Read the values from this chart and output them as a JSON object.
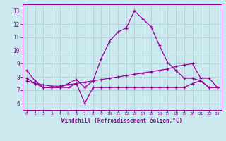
{
  "xlabel": "Windchill (Refroidissement éolien,°C)",
  "background_color": "#cce9f0",
  "line_color": "#990099",
  "grid_color": "#aaccd4",
  "xlim": [
    -0.5,
    23.5
  ],
  "ylim": [
    5.5,
    13.5
  ],
  "xticks": [
    0,
    1,
    2,
    3,
    4,
    5,
    6,
    7,
    8,
    9,
    10,
    11,
    12,
    13,
    14,
    15,
    16,
    17,
    18,
    19,
    20,
    21,
    22,
    23
  ],
  "yticks": [
    6,
    7,
    8,
    9,
    10,
    11,
    12,
    13
  ],
  "line1_x": [
    0,
    1,
    2,
    3,
    4,
    5,
    6,
    7,
    8,
    9,
    10,
    11,
    12,
    13,
    14,
    15,
    16,
    17,
    18,
    19,
    20,
    21,
    22,
    23
  ],
  "line1_y": [
    8.5,
    7.7,
    7.2,
    7.2,
    7.2,
    7.5,
    7.8,
    7.2,
    7.7,
    9.4,
    10.7,
    11.4,
    11.7,
    13.0,
    12.4,
    11.8,
    10.4,
    9.1,
    8.5,
    7.9,
    7.9,
    7.7,
    7.2,
    7.2
  ],
  "line2_x": [
    0,
    1,
    2,
    3,
    4,
    5,
    6,
    7,
    8,
    9,
    10,
    11,
    12,
    13,
    14,
    15,
    16,
    17,
    18,
    19,
    20,
    21,
    22,
    23
  ],
  "line2_y": [
    7.7,
    7.5,
    7.4,
    7.3,
    7.3,
    7.4,
    7.5,
    7.6,
    7.7,
    7.8,
    7.9,
    8.0,
    8.1,
    8.2,
    8.3,
    8.4,
    8.5,
    8.6,
    8.8,
    8.9,
    9.0,
    7.9,
    7.9,
    7.2
  ],
  "line3_x": [
    0,
    1,
    2,
    3,
    4,
    5,
    6,
    7,
    8,
    9,
    10,
    11,
    12,
    13,
    14,
    15,
    16,
    17,
    18,
    19,
    20,
    21,
    22,
    23
  ],
  "line3_y": [
    7.9,
    7.5,
    7.2,
    7.2,
    7.2,
    7.2,
    7.5,
    6.0,
    7.2,
    7.2,
    7.2,
    7.2,
    7.2,
    7.2,
    7.2,
    7.2,
    7.2,
    7.2,
    7.2,
    7.2,
    7.5,
    7.7,
    7.2,
    7.2
  ]
}
